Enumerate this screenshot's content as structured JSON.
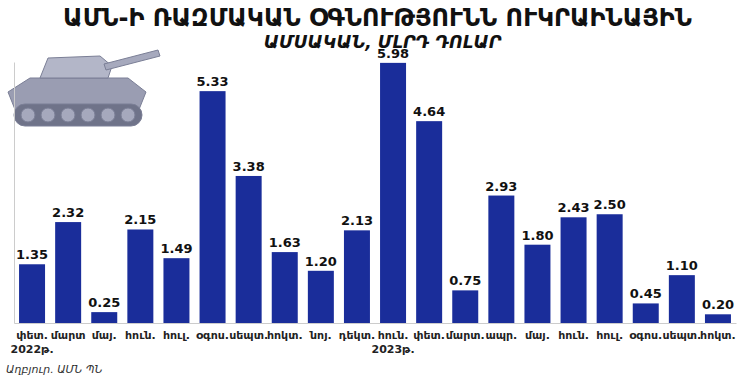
{
  "chart_data": {
    "type": "bar",
    "title": "ԱՄՆ-Ի ՌԱԶՄԱԿԱՆ ՕԳՆՈՒԹՅՈՒՆՆ ՈՒԿՐԱԻՆԱՅԻՆ",
    "subtitle": "ԱՄՍԱԿԱՆ, ՄԼՐԴ ԴՈԼԱՐ",
    "source": "Աղբյուր. ԱՄՆ ՊՆ",
    "categories": [
      "փետ.\n2022թ.",
      "մարտ",
      "մայ.",
      "հուն.",
      "հուլ.",
      "օգոս.",
      "սեպտ.",
      "հոկտ.",
      "նոյ.",
      "դեկտ.",
      "հուն.\n2023թ.",
      "փետ.",
      "մարտ.",
      "ապր.",
      "մայ.",
      "հուն.",
      "հուլ.",
      "օգոս.",
      "սեպտ.",
      "հոկտ."
    ],
    "values": [
      1.35,
      2.32,
      0.25,
      2.15,
      1.49,
      5.33,
      3.38,
      1.63,
      1.2,
      2.13,
      5.98,
      4.64,
      0.75,
      2.93,
      1.8,
      2.43,
      2.5,
      0.45,
      1.1,
      0.2
    ],
    "value_labels": [
      "1.35",
      "2.32",
      "0.25",
      "2.15",
      "1.49",
      "5.33",
      "3.38",
      "1.63",
      "1.20",
      "2.13",
      "5.98",
      "4.64",
      "0.75",
      "2.93",
      "1.80",
      "2.43",
      "2.50",
      "0.45",
      "1.10",
      "0.20"
    ],
    "color": "#1a2d9a",
    "ylim": [
      0,
      6
    ],
    "grid": false,
    "data_labels": true,
    "tick_labels": "x"
  }
}
